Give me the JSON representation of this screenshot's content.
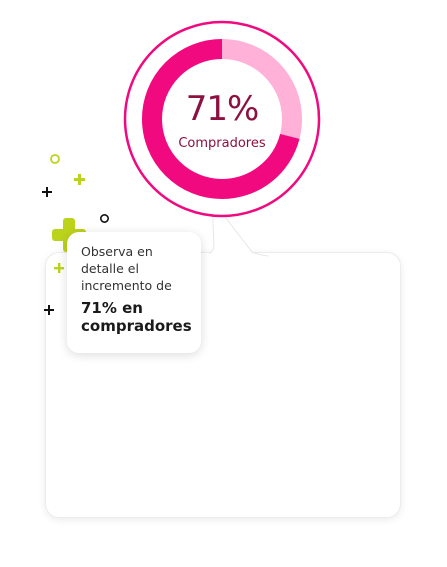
{
  "donut": {
    "value_text": "71%",
    "label": "Compradores",
    "percent": 71,
    "colors": {
      "filled": "#f0097f",
      "remaining": "#ffb1d8",
      "ring": "#f0097f"
    }
  },
  "note": {
    "text": "Observa en detalle el incremento de",
    "highlight": "71% en compradores"
  },
  "decorations": {
    "plus_color": "#bcd31c",
    "dark_color": "#111111",
    "icons": [
      "plus-icon",
      "circle-icon"
    ]
  }
}
